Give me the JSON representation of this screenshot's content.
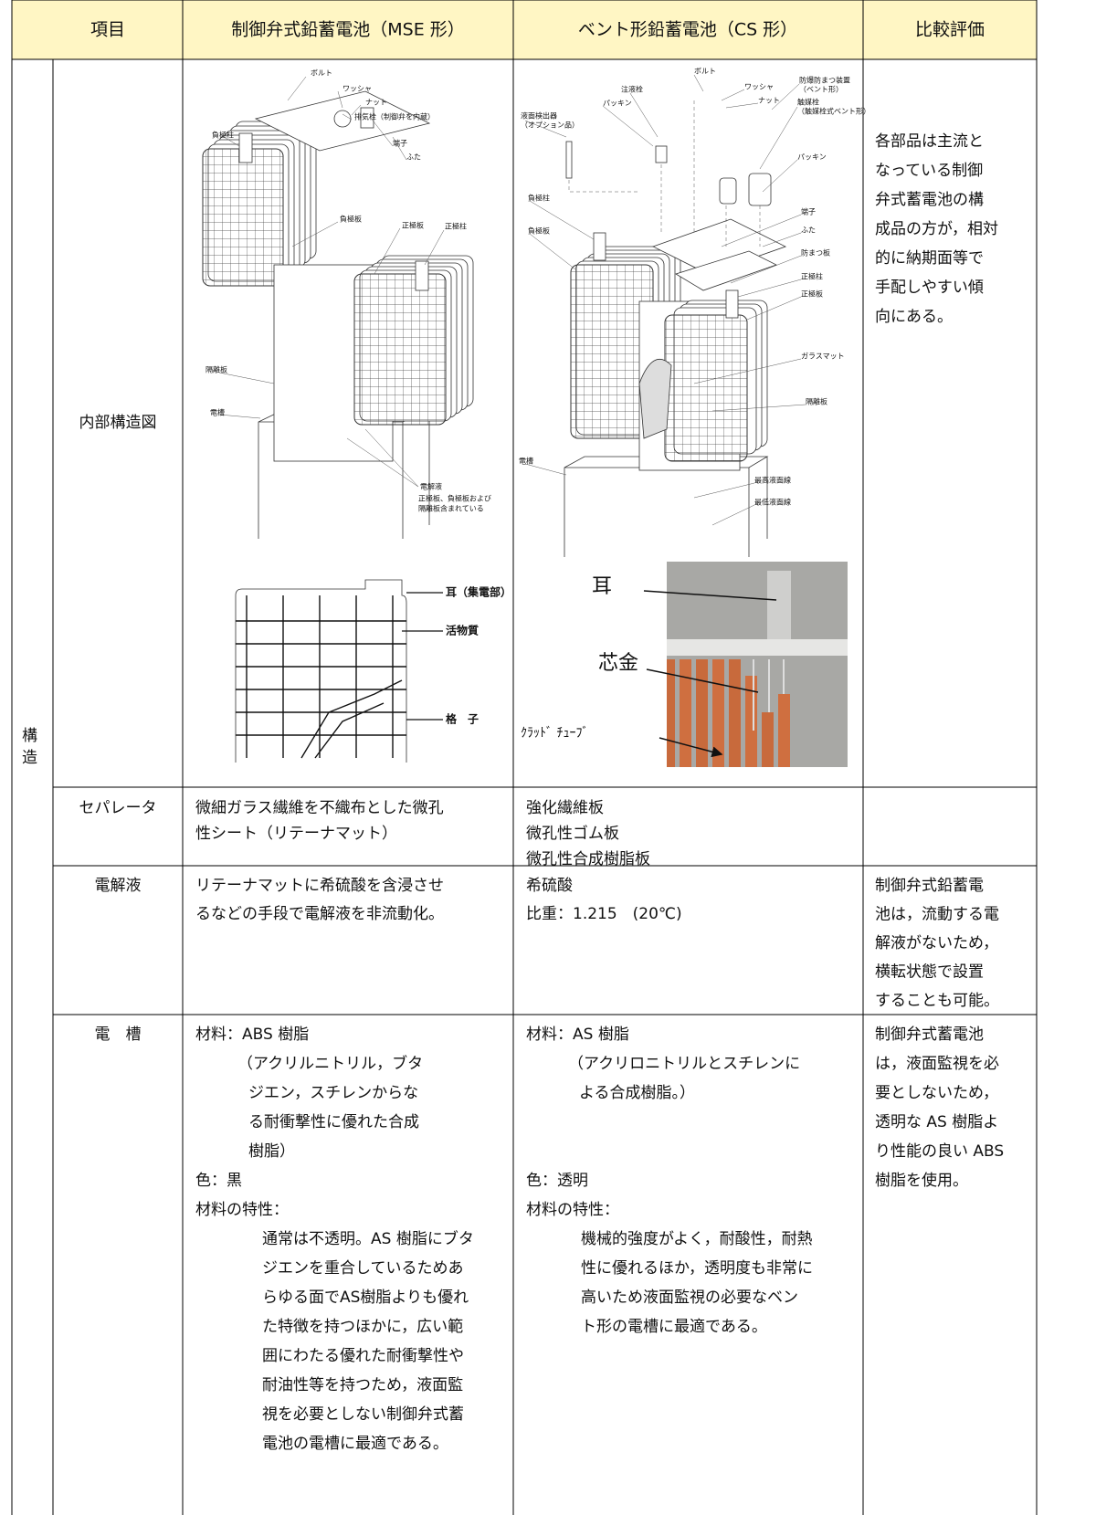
{
  "header": {
    "item": "項目",
    "mse": "制御弁式鉛蓄電池（MSE 形）",
    "cs": "ベント形鉛蓄電池（CS 形）",
    "evaluation": "比較評価"
  },
  "section": [
    "構",
    "造"
  ],
  "internal": {
    "item": "内部構造図",
    "mse_labels": [
      "ボルト",
      "ワッシャ",
      "ナット",
      "排気栓（制御弁を内蔵）",
      "負極柱",
      "端子",
      "ふた",
      "負極板",
      "正極板",
      "正極柱",
      "隔離板",
      "電槽",
      "電解液",
      "正極板、負極板および",
      "隔離板含まれている"
    ],
    "grid_labels": [
      "耳（集電部）",
      "活物質",
      "格　子"
    ],
    "cs_labels": [
      "ボルト",
      "注液栓",
      "ワッシャ",
      "ナット",
      "防爆防まつ装置",
      "（ベント形）",
      "パッキン",
      "液面検出器",
      "（オプション品）",
      "触媒栓",
      "（触媒栓式ベント形）",
      "パッキン",
      "負極柱",
      "負極板",
      "端子",
      "ふた",
      "防まつ板",
      "正極柱",
      "正極板",
      "ガラスマット",
      "隔離板",
      "電槽",
      "最高液面線",
      "最低液面線"
    ],
    "photo_labels": [
      "耳",
      "芯金",
      "ｸﾗｯﾄﾞ ﾁｭｰﾌﾞ"
    ],
    "evaluation": [
      "各部品は主流と",
      "なっている制御",
      "弁式蓄電池の構",
      "成品の方が，相対",
      "的に納期面等で",
      "手配しやすい傾",
      "向にある。"
    ]
  },
  "separator": {
    "item": "セパレータ",
    "mse": [
      "微細ガラス繊維を不織布とした微孔",
      "性シート（リテーナマット）"
    ],
    "cs": [
      "強化繊維板",
      "微孔性ゴム板",
      "微孔性合成樹脂板"
    ]
  },
  "electrolyte": {
    "item": "電解液",
    "mse": [
      "リテーナマットに希硫酸を含浸させ",
      "るなどの手段で電解液を非流動化。"
    ],
    "cs": [
      "希硫酸",
      "比重：1.215　(20℃)"
    ],
    "evaluation": [
      "制御弁式鉛蓄電",
      "池は，流動する電",
      "解液がないため，",
      "横転状態で設置",
      "することも可能。"
    ]
  },
  "container": {
    "item": "電　槽",
    "mse": {
      "material": "材料：ABS 樹脂",
      "material_note": [
        "（アクリルニトリル，ブタ",
        "ジエン，スチレンからな",
        "る耐衝撃性に優れた合成",
        "樹脂）"
      ],
      "color": "色：黒",
      "property": "材料の特性：",
      "property_text": [
        "通常は不透明。AS 樹脂にブタ",
        "ジエンを重合しているためあ",
        "らゆる面でAS樹脂よりも優れ",
        "た特徴を持つほかに，広い範",
        "囲にわたる優れた耐衝撃性や",
        "耐油性等を持つため，液面監",
        "視を必要としない制御弁式蓄",
        "電池の電槽に最適である。"
      ]
    },
    "cs": {
      "material": "材料：AS 樹脂",
      "material_note": [
        "（アクリロニトリルとスチレンに",
        "よる合成樹脂。）"
      ],
      "color": "色：透明",
      "property": "材料の特性：",
      "property_text": [
        "機械的強度がよく，耐酸性，耐熱",
        "性に優れるほか，透明度も非常に",
        "高いため液面監視の必要なベン",
        "ト形の電槽に最適である。"
      ]
    },
    "evaluation": [
      "制御弁式蓄電池",
      "は，液面監視を必",
      "要としないため，",
      "透明な AS 樹脂よ",
      "り性能の良い ABS",
      "樹脂を使用。"
    ]
  }
}
